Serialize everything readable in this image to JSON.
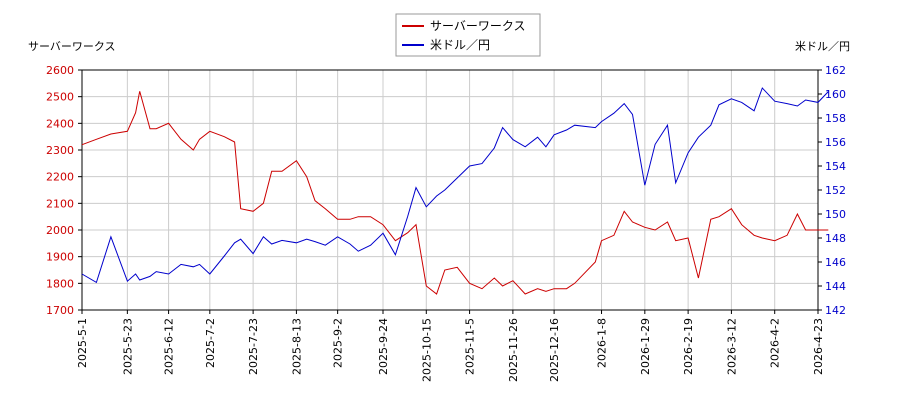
{
  "chart_data": {
    "type": "line",
    "left_axis_title": "サーバーワークス",
    "right_axis_title": "米ドル／円",
    "legend_position": "top-center",
    "grid": true,
    "x_ticks": [
      "2025-5-1",
      "2025-5-23",
      "2025-6-12",
      "2025-7-2",
      "2025-7-23",
      "2025-8-13",
      "2025-9-2",
      "2025-9-24",
      "2025-10-15",
      "2025-11-5",
      "2025-11-26",
      "2025-12-16",
      "2026-1-8",
      "2026-1-29",
      "2026-2-19",
      "2026-3-12",
      "2026-4-2",
      "2026-4-23"
    ],
    "y_left": {
      "min": 1700,
      "max": 2600,
      "ticks": [
        1700,
        1800,
        1900,
        2000,
        2100,
        2200,
        2300,
        2400,
        2500,
        2600
      ],
      "color": "#cc0000"
    },
    "y_right": {
      "min": 142,
      "max": 162,
      "ticks": [
        142,
        144,
        146,
        148,
        150,
        152,
        154,
        156,
        158,
        160,
        162
      ],
      "color": "#0000cc"
    },
    "series": [
      {
        "name": "サーバーワークス",
        "axis": "left",
        "color": "#cc0000",
        "x": [
          "2025-5-1",
          "2025-5-8",
          "2025-5-15",
          "2025-5-23",
          "2025-5-27",
          "2025-5-29",
          "2025-6-3",
          "2025-6-6",
          "2025-6-12",
          "2025-6-18",
          "2025-6-24",
          "2025-6-27",
          "2025-7-2",
          "2025-7-9",
          "2025-7-14",
          "2025-7-17",
          "2025-7-23",
          "2025-7-28",
          "2025-8-1",
          "2025-8-6",
          "2025-8-13",
          "2025-8-18",
          "2025-8-22",
          "2025-8-27",
          "2025-9-2",
          "2025-9-8",
          "2025-9-12",
          "2025-9-18",
          "2025-9-24",
          "2025-9-30",
          "2025-10-6",
          "2025-10-10",
          "2025-10-15",
          "2025-10-20",
          "2025-10-24",
          "2025-10-30",
          "2025-11-5",
          "2025-11-11",
          "2025-11-17",
          "2025-11-21",
          "2025-11-26",
          "2025-12-2",
          "2025-12-8",
          "2025-12-12",
          "2025-12-16",
          "2025-12-22",
          "2025-12-26",
          "2026-1-5",
          "2026-1-8",
          "2026-1-14",
          "2026-1-19",
          "2026-1-23",
          "2026-1-29",
          "2026-2-3",
          "2026-2-9",
          "2026-2-13",
          "2026-2-19",
          "2026-2-24",
          "2026-3-2",
          "2026-3-6",
          "2026-3-12",
          "2026-3-17",
          "2026-3-23",
          "2026-3-27",
          "2026-4-2",
          "2026-4-8",
          "2026-4-13",
          "2026-4-17",
          "2026-4-23",
          "2026-4-28"
        ],
        "values": [
          2320,
          2340,
          2360,
          2370,
          2440,
          2520,
          2380,
          2380,
          2400,
          2340,
          2300,
          2340,
          2370,
          2350,
          2330,
          2080,
          2070,
          2100,
          2220,
          2220,
          2260,
          2200,
          2110,
          2080,
          2040,
          2040,
          2050,
          2050,
          2020,
          1960,
          1990,
          2020,
          1790,
          1760,
          1850,
          1860,
          1800,
          1780,
          1820,
          1790,
          1810,
          1760,
          1780,
          1770,
          1780,
          1780,
          1800,
          1880,
          1960,
          1980,
          2070,
          2030,
          2010,
          2000,
          2030,
          1960,
          1970,
          1820,
          2040,
          2050,
          2080,
          2020,
          1980,
          1970,
          1960,
          1980,
          2060,
          2000,
          2000,
          2000
        ]
      },
      {
        "name": "米ドル／円",
        "axis": "right",
        "color": "#0000cc",
        "x": [
          "2025-5-1",
          "2025-5-8",
          "2025-5-15",
          "2025-5-23",
          "2025-5-27",
          "2025-5-29",
          "2025-6-3",
          "2025-6-6",
          "2025-6-12",
          "2025-6-18",
          "2025-6-24",
          "2025-6-27",
          "2025-7-2",
          "2025-7-9",
          "2025-7-14",
          "2025-7-17",
          "2025-7-23",
          "2025-7-28",
          "2025-8-1",
          "2025-8-6",
          "2025-8-13",
          "2025-8-18",
          "2025-8-22",
          "2025-8-27",
          "2025-9-2",
          "2025-9-8",
          "2025-9-12",
          "2025-9-18",
          "2025-9-24",
          "2025-9-30",
          "2025-10-6",
          "2025-10-10",
          "2025-10-15",
          "2025-10-20",
          "2025-10-24",
          "2025-10-30",
          "2025-11-5",
          "2025-11-11",
          "2025-11-17",
          "2025-11-21",
          "2025-11-26",
          "2025-12-2",
          "2025-12-8",
          "2025-12-12",
          "2025-12-16",
          "2025-12-22",
          "2025-12-26",
          "2026-1-5",
          "2026-1-8",
          "2026-1-14",
          "2026-1-19",
          "2026-1-23",
          "2026-1-29",
          "2026-2-3",
          "2026-2-9",
          "2026-2-13",
          "2026-2-19",
          "2026-2-24",
          "2026-3-2",
          "2026-3-6",
          "2026-3-12",
          "2026-3-17",
          "2026-3-23",
          "2026-3-27",
          "2026-4-2",
          "2026-4-8",
          "2026-4-13",
          "2026-4-17",
          "2026-4-23",
          "2026-4-28"
        ],
        "values": [
          145.0,
          144.3,
          148.1,
          144.4,
          145.0,
          144.5,
          144.8,
          145.2,
          145.0,
          145.8,
          145.6,
          145.8,
          145.0,
          146.5,
          147.6,
          147.9,
          146.7,
          148.1,
          147.5,
          147.8,
          147.6,
          147.9,
          147.7,
          147.4,
          148.1,
          147.5,
          146.9,
          147.4,
          148.4,
          146.6,
          149.8,
          152.2,
          150.6,
          151.5,
          152.0,
          153.0,
          154.0,
          154.2,
          155.5,
          157.2,
          156.2,
          155.6,
          156.4,
          155.6,
          156.6,
          157.0,
          157.4,
          157.2,
          157.7,
          158.4,
          159.2,
          158.3,
          152.4,
          155.8,
          157.4,
          152.6,
          155.1,
          156.4,
          157.4,
          159.1,
          159.6,
          159.3,
          158.6,
          160.5,
          159.4,
          159.2,
          159.0,
          159.5,
          159.3,
          160.2
        ]
      }
    ]
  }
}
